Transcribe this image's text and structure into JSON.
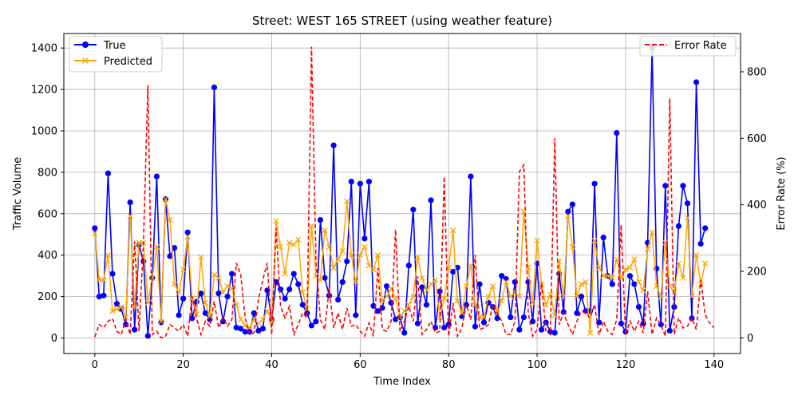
{
  "chart_data": {
    "type": "line",
    "title": "Street: WEST 165 STREET (using weather feature)",
    "xlabel": "Time Index",
    "ylabel": "Traffic Volume",
    "y2label": "Error Rate (%)",
    "xlim": [
      -7,
      146
    ],
    "ylim": [
      -75,
      1470
    ],
    "y2lim": [
      -47,
      915
    ],
    "x_ticks": [
      0,
      20,
      40,
      60,
      80,
      100,
      120,
      140
    ],
    "y_ticks": [
      0,
      200,
      400,
      600,
      800,
      1000,
      1200,
      1400
    ],
    "y2_ticks": [
      0,
      200,
      400,
      600,
      800
    ],
    "grid": true,
    "legend_left_placement": "upper-left",
    "legend_right_placement": "upper-right",
    "colors": {
      "true": "#0000ff",
      "predicted": "#ffa500",
      "error": "#ff0000",
      "grid": "#b0b0b0"
    },
    "series": [
      {
        "name": "True",
        "axis": "left",
        "marker": "circle",
        "values": [
          530,
          200,
          205,
          795,
          310,
          165,
          140,
          65,
          655,
          40,
          450,
          370,
          10,
          290,
          780,
          75,
          670,
          395,
          435,
          110,
          190,
          510,
          95,
          175,
          215,
          120,
          90,
          1210,
          215,
          80,
          200,
          310,
          50,
          45,
          30,
          30,
          120,
          35,
          45,
          230,
          90,
          270,
          235,
          190,
          235,
          310,
          260,
          160,
          120,
          60,
          80,
          570,
          290,
          205,
          930,
          185,
          270,
          370,
          755,
          110,
          745,
          480,
          755,
          155,
          130,
          145,
          250,
          170,
          90,
          100,
          25,
          350,
          620,
          70,
          245,
          160,
          665,
          50,
          225,
          50,
          65,
          320,
          340,
          105,
          160,
          780,
          55,
          260,
          75,
          170,
          150,
          95,
          300,
          285,
          100,
          270,
          40,
          100,
          270,
          80,
          360,
          40,
          75,
          30,
          25,
          310,
          125,
          610,
          645,
          120,
          200,
          130,
          130,
          745,
          75,
          485,
          300,
          260,
          990,
          70,
          30,
          300,
          260,
          150,
          70,
          460,
          1400,
          335,
          65,
          735,
          35,
          150,
          540,
          735,
          650,
          95,
          1235,
          455,
          530
        ]
      },
      {
        "name": "Predicted",
        "axis": "left",
        "marker": "x",
        "values": [
          505,
          280,
          280,
          400,
          130,
          140,
          150,
          100,
          590,
          150,
          460,
          460,
          170,
          290,
          440,
          80,
          670,
          570,
          260,
          220,
          330,
          490,
          190,
          115,
          390,
          170,
          105,
          305,
          290,
          220,
          250,
          240,
          160,
          90,
          60,
          50,
          90,
          70,
          90,
          130,
          80,
          565,
          440,
          310,
          460,
          450,
          475,
          220,
          140,
          540,
          300,
          280,
          520,
          440,
          340,
          380,
          420,
          660,
          400,
          270,
          400,
          440,
          350,
          330,
          400,
          180,
          200,
          240,
          190,
          100,
          130,
          160,
          200,
          390,
          290,
          230,
          260,
          280,
          100,
          190,
          340,
          520,
          180,
          120,
          250,
          350,
          160,
          100,
          100,
          200,
          250,
          120,
          180,
          270,
          200,
          220,
          200,
          610,
          340,
          170,
          470,
          260,
          160,
          210,
          110,
          370,
          200,
          590,
          440,
          200,
          260,
          270,
          25,
          470,
          340,
          300,
          300,
          290,
          380,
          290,
          330,
          340,
          380,
          270,
          230,
          430,
          510,
          250,
          200,
          460,
          250,
          220,
          360,
          290,
          580,
          200,
          400,
          260,
          360
        ]
      },
      {
        "name": "Error Rate",
        "axis": "right",
        "style": "dashed",
        "values": [
          3,
          40,
          30,
          50,
          58,
          20,
          10,
          55,
          10,
          290,
          20,
          285,
          760,
          10,
          20,
          0,
          5,
          40,
          30,
          20,
          40,
          5,
          125,
          60,
          10,
          50,
          35,
          110,
          30,
          60,
          35,
          55,
          225,
          190,
          60,
          10,
          15,
          115,
          175,
          225,
          10,
          330,
          95,
          60,
          95,
          10,
          40,
          75,
          60,
          875,
          235,
          55,
          25,
          150,
          30,
          75,
          25,
          90,
          35,
          40,
          20,
          5,
          45,
          5,
          210,
          25,
          20,
          50,
          325,
          20,
          50,
          95,
          50,
          185,
          10,
          25,
          50,
          15,
          20,
          485,
          5,
          105,
          5,
          30,
          100,
          55,
          250,
          25,
          30,
          40,
          100,
          75,
          50,
          10,
          10,
          50,
          500,
          520,
          75,
          5,
          25,
          165,
          20,
          10,
          600,
          40,
          75,
          40,
          10,
          50,
          80,
          75,
          60,
          100,
          10,
          50,
          20,
          10,
          55,
          340,
          10,
          50,
          20,
          50,
          15,
          140,
          10,
          60,
          40,
          5,
          720,
          10,
          60,
          30,
          35,
          60,
          25,
          175,
          70,
          45,
          30
        ]
      }
    ]
  }
}
